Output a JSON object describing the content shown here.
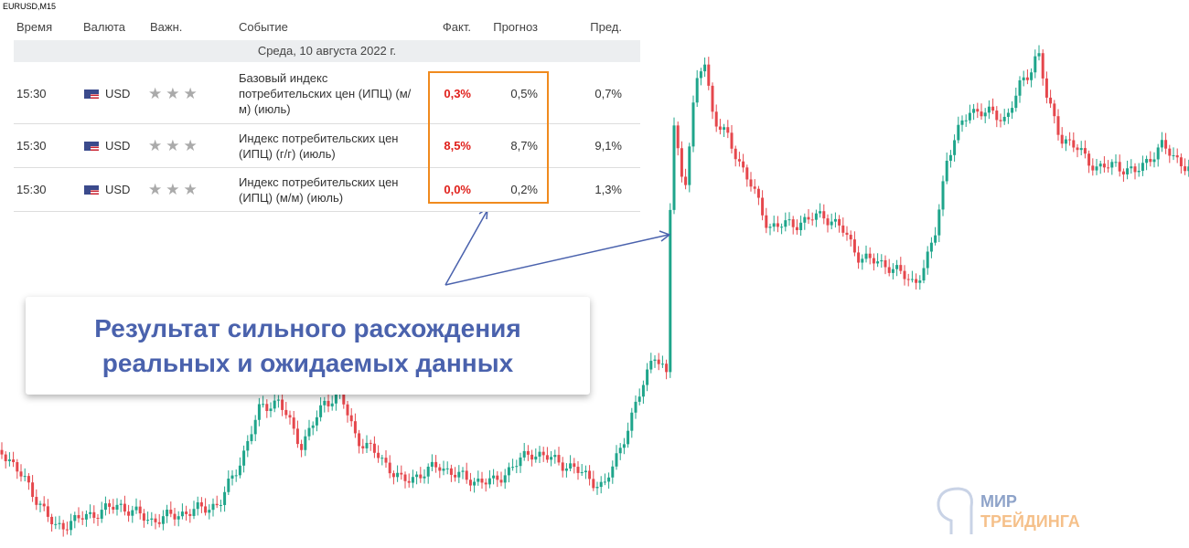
{
  "symbol": "EURUSD,M15",
  "table": {
    "headers": {
      "time": "Время",
      "currency": "Валюта",
      "importance": "Важн.",
      "event": "Событие",
      "actual": "Факт.",
      "forecast": "Прогноз",
      "previous": "Пред."
    },
    "date": "Среда, 10 августа 2022 г.",
    "rows": [
      {
        "time": "15:30",
        "currency": "USD",
        "event": "Базовый индекс потребительских цен (ИПЦ) (м/м) (июль)",
        "actual": "0,3%",
        "forecast": "0,5%",
        "previous": "0,7%"
      },
      {
        "time": "15:30",
        "currency": "USD",
        "event": "Индекс потребительских цен (ИПЦ) (г/г) (июль)",
        "actual": "8,5%",
        "forecast": "8,7%",
        "previous": "9,1%"
      },
      {
        "time": "15:30",
        "currency": "USD",
        "event": "Индекс потребительских цен (ИПЦ) (м/м) (июль)",
        "actual": "0,0%",
        "forecast": "0,2%",
        "previous": "1,3%"
      }
    ]
  },
  "callout": [
    "Результат сильного расхождения",
    "реальных и ожидаемых данных"
  ],
  "logo": {
    "top": "МИР",
    "bottom": "ТРЕЙДИНГА"
  }
}
